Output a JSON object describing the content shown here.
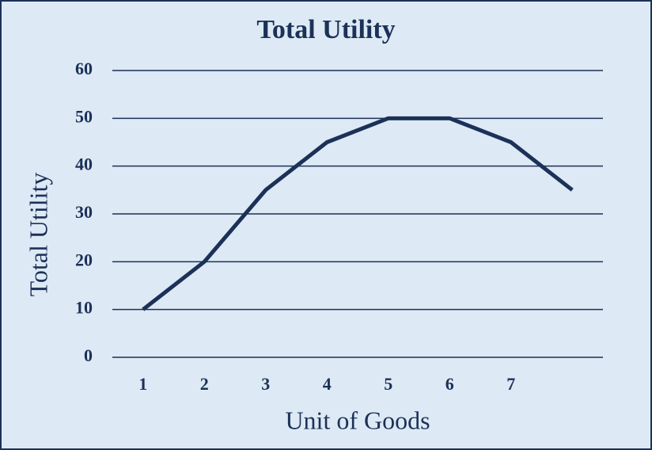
{
  "chart_data": {
    "type": "line",
    "title": "Total Utility",
    "x_label": "Unit of Goods",
    "y_label": "Total Utility",
    "categories": [
      "1",
      "2",
      "3",
      "4",
      "5",
      "6",
      "7",
      null
    ],
    "values": [
      10,
      20,
      35,
      45,
      50,
      50,
      45,
      35
    ],
    "color": "#1c3157",
    "ylim": [
      0,
      60
    ],
    "yticks": [
      0,
      10,
      20,
      30,
      40,
      50,
      60
    ],
    "grid": true
  }
}
